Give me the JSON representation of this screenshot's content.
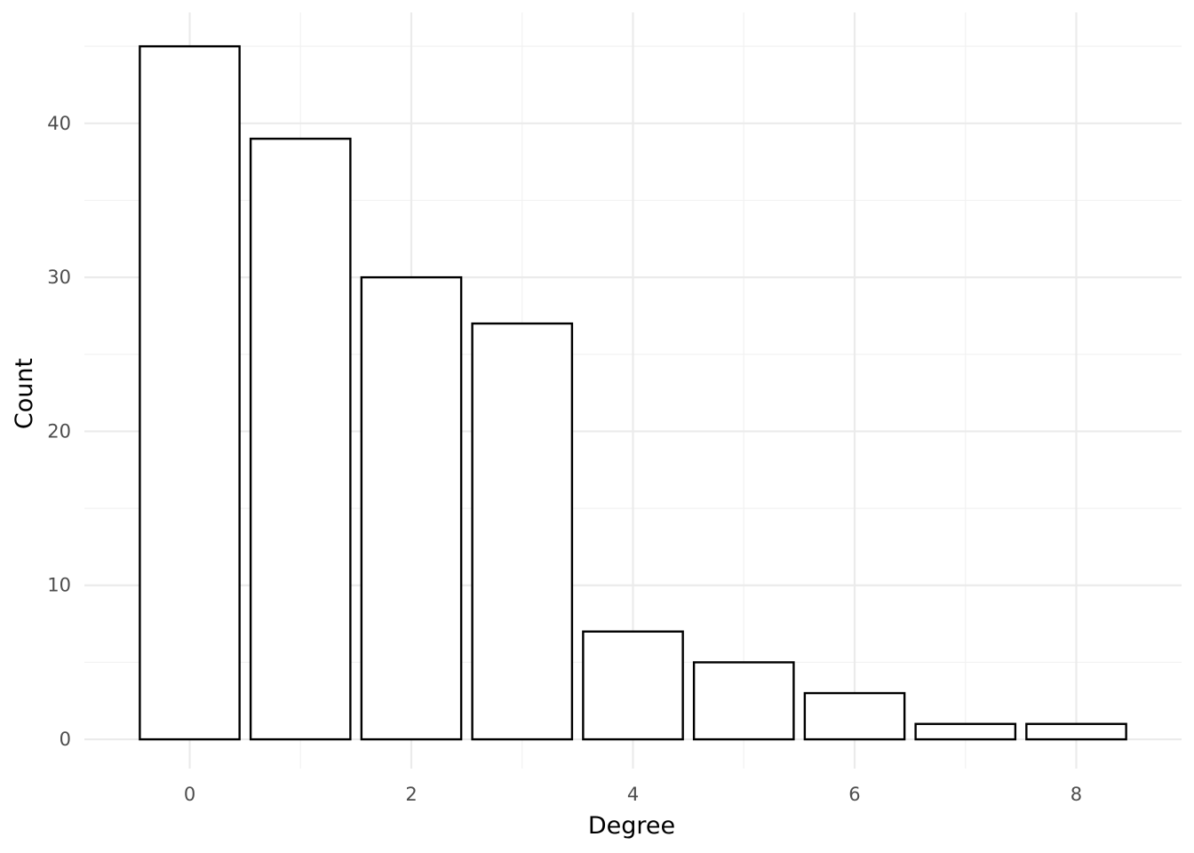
{
  "chart_data": {
    "type": "bar",
    "categories": [
      "0",
      "1",
      "2",
      "3",
      "4",
      "5",
      "6",
      "7",
      "8"
    ],
    "x": [
      0,
      1,
      2,
      3,
      4,
      5,
      6,
      7,
      8
    ],
    "values": [
      45,
      39,
      30,
      27,
      7,
      5,
      3,
      1,
      1
    ],
    "title": "",
    "xlabel": "Degree",
    "ylabel": "Count",
    "xlim": [
      -0.95,
      8.95
    ],
    "ylim": [
      -1.9,
      47.2
    ],
    "x_ticks": [
      0,
      2,
      4,
      6,
      8
    ],
    "x_tick_labels": [
      "0",
      "2",
      "4",
      "6",
      "8"
    ],
    "y_ticks": [
      0,
      10,
      20,
      30,
      40
    ],
    "y_tick_labels": [
      "0",
      "10",
      "20",
      "30",
      "40"
    ],
    "grid": true,
    "legend": "none",
    "bar_fill": "#ffffff",
    "bar_outline": "#000000",
    "grid_color": "#ebebeb"
  }
}
